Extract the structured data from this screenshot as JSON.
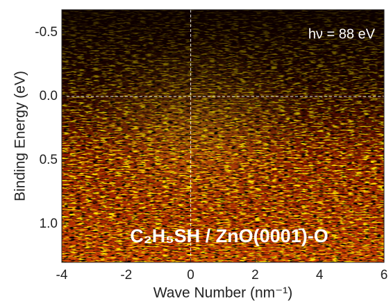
{
  "chart_data": {
    "type": "heatmap",
    "xlabel": "Wave Number (nm⁻¹)",
    "ylabel": "Binding Energy (eV)",
    "annotations": [
      "hν = 88 eV",
      "C₂H₅SH / ZnO(0001̄)-O"
    ],
    "xlim": [
      -4,
      6
    ],
    "xticks": [
      -4,
      -2,
      0,
      2,
      4,
      6
    ],
    "ylim": [
      -0.68,
      1.3
    ],
    "y_inverted": true,
    "yticks": [
      -0.5,
      {
        "value": 0,
        "label": "0.0"
      },
      0.5,
      {
        "value": 1,
        "label": "1.0"
      }
    ],
    "reference_lines": {
      "x": 0,
      "y": 0,
      "color": "#ffffff"
    }
  }
}
